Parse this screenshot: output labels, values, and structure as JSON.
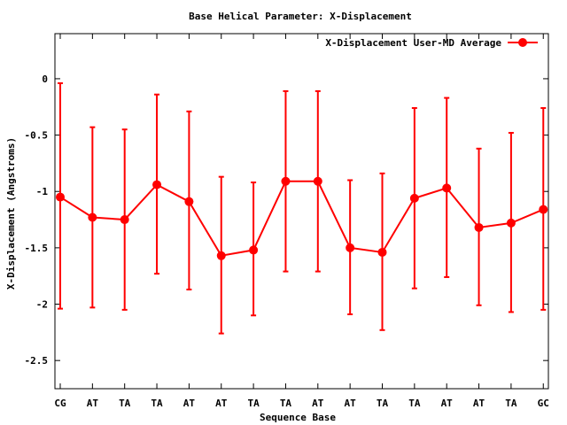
{
  "chart_data": {
    "type": "line",
    "title": "Base  Helical Parameter: X-Displacement",
    "xlabel": "Sequence Base",
    "ylabel": "X-Displacement (Angstroms)",
    "categories": [
      "CG",
      "AT",
      "TA",
      "TA",
      "AT",
      "AT",
      "TA",
      "TA",
      "AT",
      "AT",
      "TA",
      "TA",
      "AT",
      "AT",
      "TA",
      "GC"
    ],
    "ylim": [
      -2.75,
      0.4
    ],
    "yticks": [
      0,
      -0.5,
      -1,
      -1.5,
      -2,
      -2.5
    ],
    "ytick_labels": [
      "0",
      "-0.5",
      "-1",
      "-1.5",
      "-2",
      "-2.5"
    ],
    "grid": false,
    "legend_position": "top-right",
    "series": [
      {
        "name": "X-Displacement User-MD Average",
        "color": "#ff0000",
        "values": [
          -1.05,
          -1.23,
          -1.25,
          -0.94,
          -1.09,
          -1.57,
          -1.52,
          -0.91,
          -0.91,
          -1.5,
          -1.54,
          -1.06,
          -0.97,
          -1.32,
          -1.28,
          -1.16
        ],
        "error_low": [
          -2.04,
          -2.03,
          -2.05,
          -1.73,
          -1.87,
          -2.26,
          -2.1,
          -1.71,
          -1.71,
          -2.09,
          -2.23,
          -1.86,
          -1.76,
          -2.01,
          -2.07,
          -2.05
        ],
        "error_high": [
          -0.04,
          -0.43,
          -0.45,
          -0.14,
          -0.29,
          -0.87,
          -0.92,
          -0.11,
          -0.11,
          -0.9,
          -0.84,
          -0.26,
          -0.17,
          -0.62,
          -0.48,
          -0.26
        ]
      }
    ]
  }
}
